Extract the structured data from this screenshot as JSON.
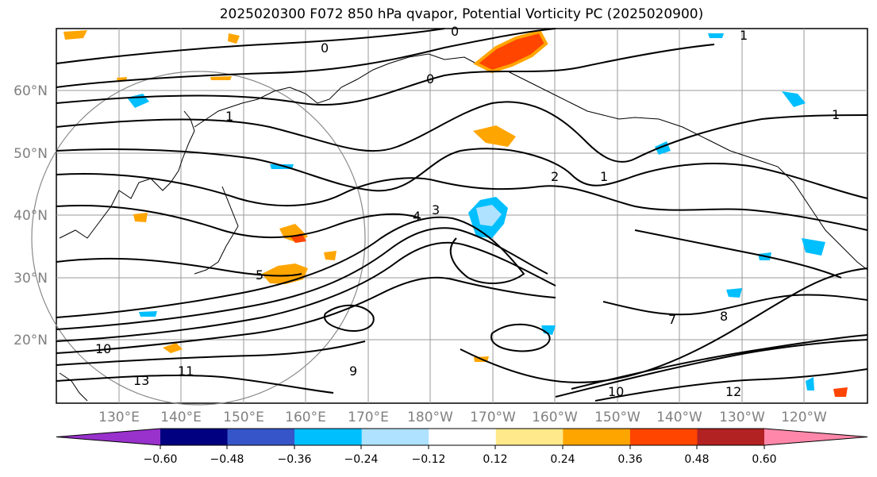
{
  "title": "2025020300 F072 850 hPa qvapor, Potential Vorticity PC (2025020900)",
  "lat_labels": [
    "60°N",
    "50°N",
    "40°N",
    "30°N",
    "20°N"
  ],
  "lon_labels": [
    "130°E",
    "140°E",
    "150°E",
    "160°E",
    "170°E",
    "180°W",
    "170°W",
    "160°W",
    "150°W",
    "140°W",
    "130°W",
    "120°W"
  ],
  "colorbar": {
    "colors": [
      "#9932CC",
      "#000080",
      "#3655C8",
      "#00BFFF",
      "#AEE2FF",
      "#FFFFFF",
      "#FFE98A",
      "#FFA500",
      "#FF4500",
      "#B22222",
      "#FF88AA"
    ],
    "tick_labels": [
      "−0.60",
      "−0.48",
      "−0.36",
      "−0.24",
      "−0.12",
      "0.12",
      "0.24",
      "0.36",
      "0.48",
      "0.60"
    ]
  },
  "contour_labels": [
    "0",
    "0",
    "0",
    "1",
    "1",
    "1",
    "1",
    "2",
    "3",
    "4",
    "5",
    "7",
    "8",
    "9",
    "10",
    "10",
    "11",
    "12",
    "13"
  ]
}
